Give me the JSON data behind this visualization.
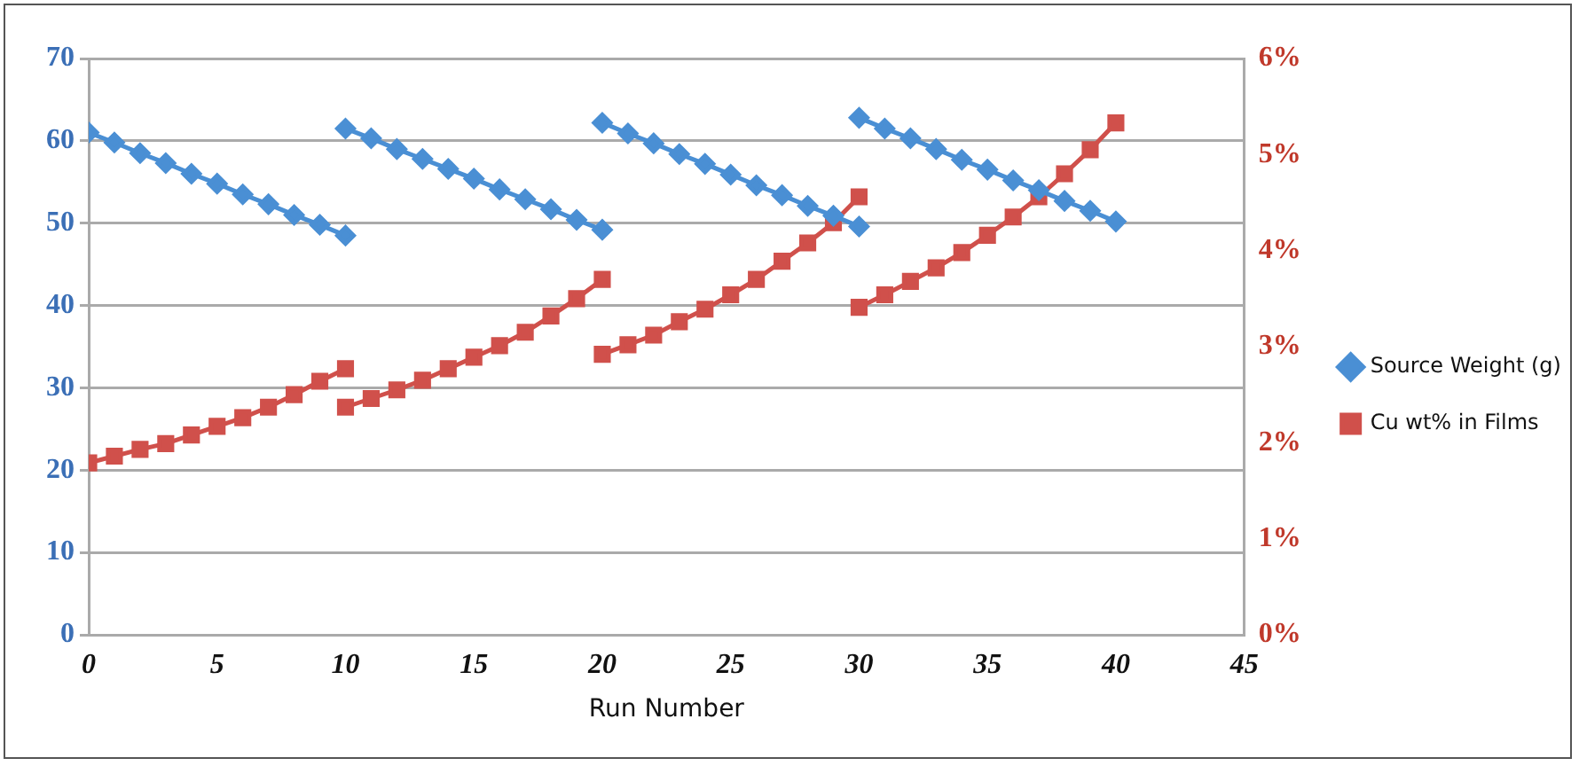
{
  "chart_data": {
    "type": "line",
    "xlabel": "Run Number",
    "xlim": [
      0,
      45
    ],
    "xticks": [
      0,
      5,
      10,
      15,
      20,
      25,
      30,
      35,
      40,
      45
    ],
    "ylim": [
      0,
      70
    ],
    "yticks": [
      0,
      10,
      20,
      30,
      40,
      50,
      60,
      70
    ],
    "y2lim": [
      0,
      6
    ],
    "y2ticks": [
      {
        "value": 0,
        "label": "0%"
      },
      {
        "value": 1,
        "label": "1%"
      },
      {
        "value": 2,
        "label": "2%"
      },
      {
        "value": 3,
        "label": "3%"
      },
      {
        "value": 4,
        "label": "4%"
      },
      {
        "value": 5,
        "label": "5%"
      },
      {
        "value": 6,
        "label": "6%"
      }
    ],
    "grid": "y",
    "legend": "right",
    "line_style": "solid",
    "x": [
      0,
      1,
      2,
      3,
      4,
      5,
      6,
      7,
      8,
      9,
      10,
      10,
      11,
      12,
      13,
      14,
      15,
      16,
      17,
      18,
      19,
      20,
      20,
      21,
      22,
      23,
      24,
      25,
      26,
      27,
      28,
      29,
      30,
      30,
      31,
      32,
      33,
      34,
      35,
      36,
      37,
      38,
      39,
      40
    ],
    "series": [
      {
        "name": "Source Weight (g)",
        "color": "#4a8fd4",
        "marker": "diamond",
        "values": [
          61,
          59.8,
          58.5,
          57.3,
          56,
          54.8,
          53.5,
          52.3,
          51,
          49.8,
          48.5,
          61.5,
          60.3,
          59,
          57.8,
          56.6,
          55.4,
          54.1,
          52.9,
          51.7,
          50.4,
          49.2,
          62.2,
          60.9,
          59.7,
          58.4,
          57.2,
          55.9,
          54.6,
          53.4,
          52.1,
          50.9,
          49.6,
          62.8,
          61.5,
          60.3,
          59,
          57.7,
          56.5,
          55.2,
          54,
          52.7,
          51.5,
          50.2
        ]
      },
      {
        "name": "Cu wt% in Films",
        "color": "#d0504b",
        "marker": "square",
        "axis": "y2",
        "values": [
          1.79,
          1.86,
          1.93,
          1.99,
          2.08,
          2.17,
          2.26,
          2.37,
          2.5,
          2.64,
          2.77,
          2.37,
          2.46,
          2.55,
          2.65,
          2.77,
          2.89,
          3.01,
          3.15,
          3.32,
          3.5,
          3.7,
          2.92,
          3.02,
          3.12,
          3.26,
          3.39,
          3.54,
          3.7,
          3.89,
          4.08,
          4.29,
          4.56,
          3.41,
          3.54,
          3.68,
          3.82,
          3.98,
          4.16,
          4.35,
          4.56,
          4.8,
          5.05,
          5.33
        ]
      }
    ]
  }
}
